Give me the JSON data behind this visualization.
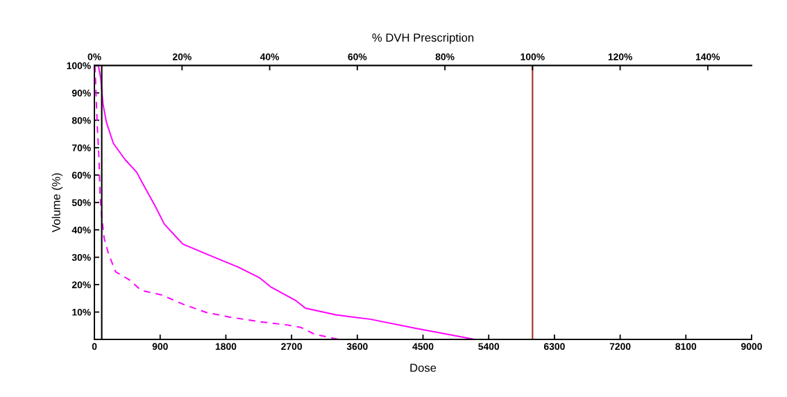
{
  "chart_data": {
    "type": "line",
    "xlabel": "Dose",
    "ylabel": "Volume (%)",
    "x2label": "% DVH Prescription",
    "xlim": [
      0,
      9000
    ],
    "xticks": [
      0,
      900,
      1800,
      2700,
      3600,
      4500,
      5400,
      6300,
      7200,
      8100,
      9000
    ],
    "x2lim": [
      0,
      150
    ],
    "x2ticks": [
      {
        "value": 0,
        "label": "0%"
      },
      {
        "value": 20,
        "label": "20%"
      },
      {
        "value": 40,
        "label": "40%"
      },
      {
        "value": 60,
        "label": "60%"
      },
      {
        "value": 80,
        "label": "80%"
      },
      {
        "value": 100,
        "label": "100%"
      },
      {
        "value": 120,
        "label": "120%"
      },
      {
        "value": 140,
        "label": "140%"
      }
    ],
    "ylim": [
      0,
      100
    ],
    "yticks": [
      {
        "value": 10,
        "label": "10%"
      },
      {
        "value": 20,
        "label": "20%"
      },
      {
        "value": 30,
        "label": "30%"
      },
      {
        "value": 40,
        "label": "40%"
      },
      {
        "value": 50,
        "label": "50%"
      },
      {
        "value": 60,
        "label": "60%"
      },
      {
        "value": 70,
        "label": "70%"
      },
      {
        "value": 80,
        "label": "80%"
      },
      {
        "value": 90,
        "label": "90%"
      },
      {
        "value": 100,
        "label": "100%"
      }
    ],
    "grid": false,
    "legend": false,
    "series": [
      {
        "color": "#ff00ff",
        "line_style": "solid",
        "x": [
          54,
          86,
          117,
          164,
          259,
          418,
          577,
          672,
          830,
          957,
          1210,
          1622,
          1970,
          2255,
          2414,
          2763,
          2889,
          3301,
          3776,
          4410,
          5210
        ],
        "values": [
          100,
          95.4,
          86,
          79.3,
          71.6,
          65.7,
          61.1,
          56.4,
          48.8,
          42.1,
          34.8,
          30.2,
          26.4,
          22.6,
          19.2,
          14.1,
          11.4,
          9.0,
          7.4,
          4.0,
          0
        ]
      },
      {
        "color": "#ff00ff",
        "line_style": "dashed",
        "x": [
          7,
          38,
          63,
          76,
          101,
          133,
          196,
          291,
          481,
          640,
          925,
          1210,
          1527,
          1844,
          2255,
          2636,
          2826,
          3016,
          3350
        ],
        "values": [
          100,
          78.4,
          65.7,
          53,
          44.6,
          37,
          31,
          24.7,
          21.7,
          17.9,
          16.2,
          12.9,
          9.9,
          8.2,
          6.5,
          5.3,
          4.4,
          1.9,
          0
        ]
      }
    ],
    "ref_lines": [
      {
        "axis": "x",
        "value": 100,
        "color": "#000000"
      },
      {
        "axis": "x",
        "value": 6000,
        "color": "#a52a2a"
      }
    ]
  }
}
